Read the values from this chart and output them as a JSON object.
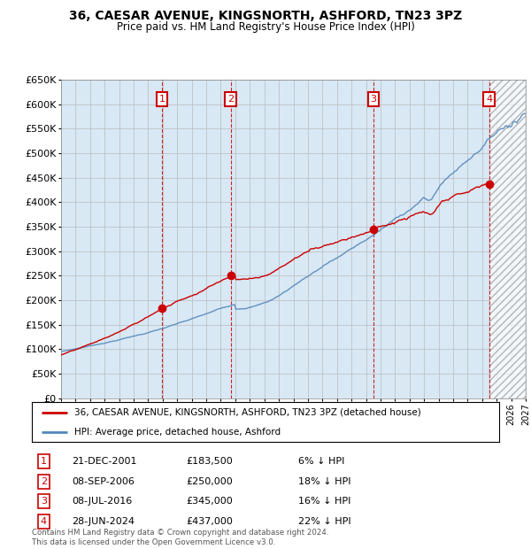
{
  "title": "36, CAESAR AVENUE, KINGSNORTH, ASHFORD, TN23 3PZ",
  "subtitle": "Price paid vs. HM Land Registry's House Price Index (HPI)",
  "ylim": [
    0,
    650000
  ],
  "yticks": [
    0,
    50000,
    100000,
    150000,
    200000,
    250000,
    300000,
    350000,
    400000,
    450000,
    500000,
    550000,
    600000,
    650000
  ],
  "ytick_labels": [
    "£0",
    "£50K",
    "£100K",
    "£150K",
    "£200K",
    "£250K",
    "£300K",
    "£350K",
    "£400K",
    "£450K",
    "£500K",
    "£550K",
    "£600K",
    "£650K"
  ],
  "xlim_start": 1995.0,
  "xlim_end": 2027.0,
  "hpi_color": "#5588BB",
  "price_color": "#CC0000",
  "chart_bg_color": "#D8E8F5",
  "sale_dates": [
    2001.96,
    2006.69,
    2016.52,
    2024.49
  ],
  "sale_prices": [
    183500,
    250000,
    345000,
    437000
  ],
  "sale_labels": [
    "1",
    "2",
    "3",
    "4"
  ],
  "sale_info": [
    [
      "1",
      "21-DEC-2001",
      "£183,500",
      "6% ↓ HPI"
    ],
    [
      "2",
      "08-SEP-2006",
      "£250,000",
      "18% ↓ HPI"
    ],
    [
      "3",
      "08-JUL-2016",
      "£345,000",
      "16% ↓ HPI"
    ],
    [
      "4",
      "28-JUN-2024",
      "£437,000",
      "22% ↓ HPI"
    ]
  ],
  "legend_line1": "36, CAESAR AVENUE, KINGSNORTH, ASHFORD, TN23 3PZ (detached house)",
  "legend_line2": "HPI: Average price, detached house, Ashford",
  "footer": "Contains HM Land Registry data © Crown copyright and database right 2024.\nThis data is licensed under the Open Government Licence v3.0.",
  "hatch_start": 2024.5,
  "background_color": "#ffffff",
  "grid_color": "#bbbbbb"
}
